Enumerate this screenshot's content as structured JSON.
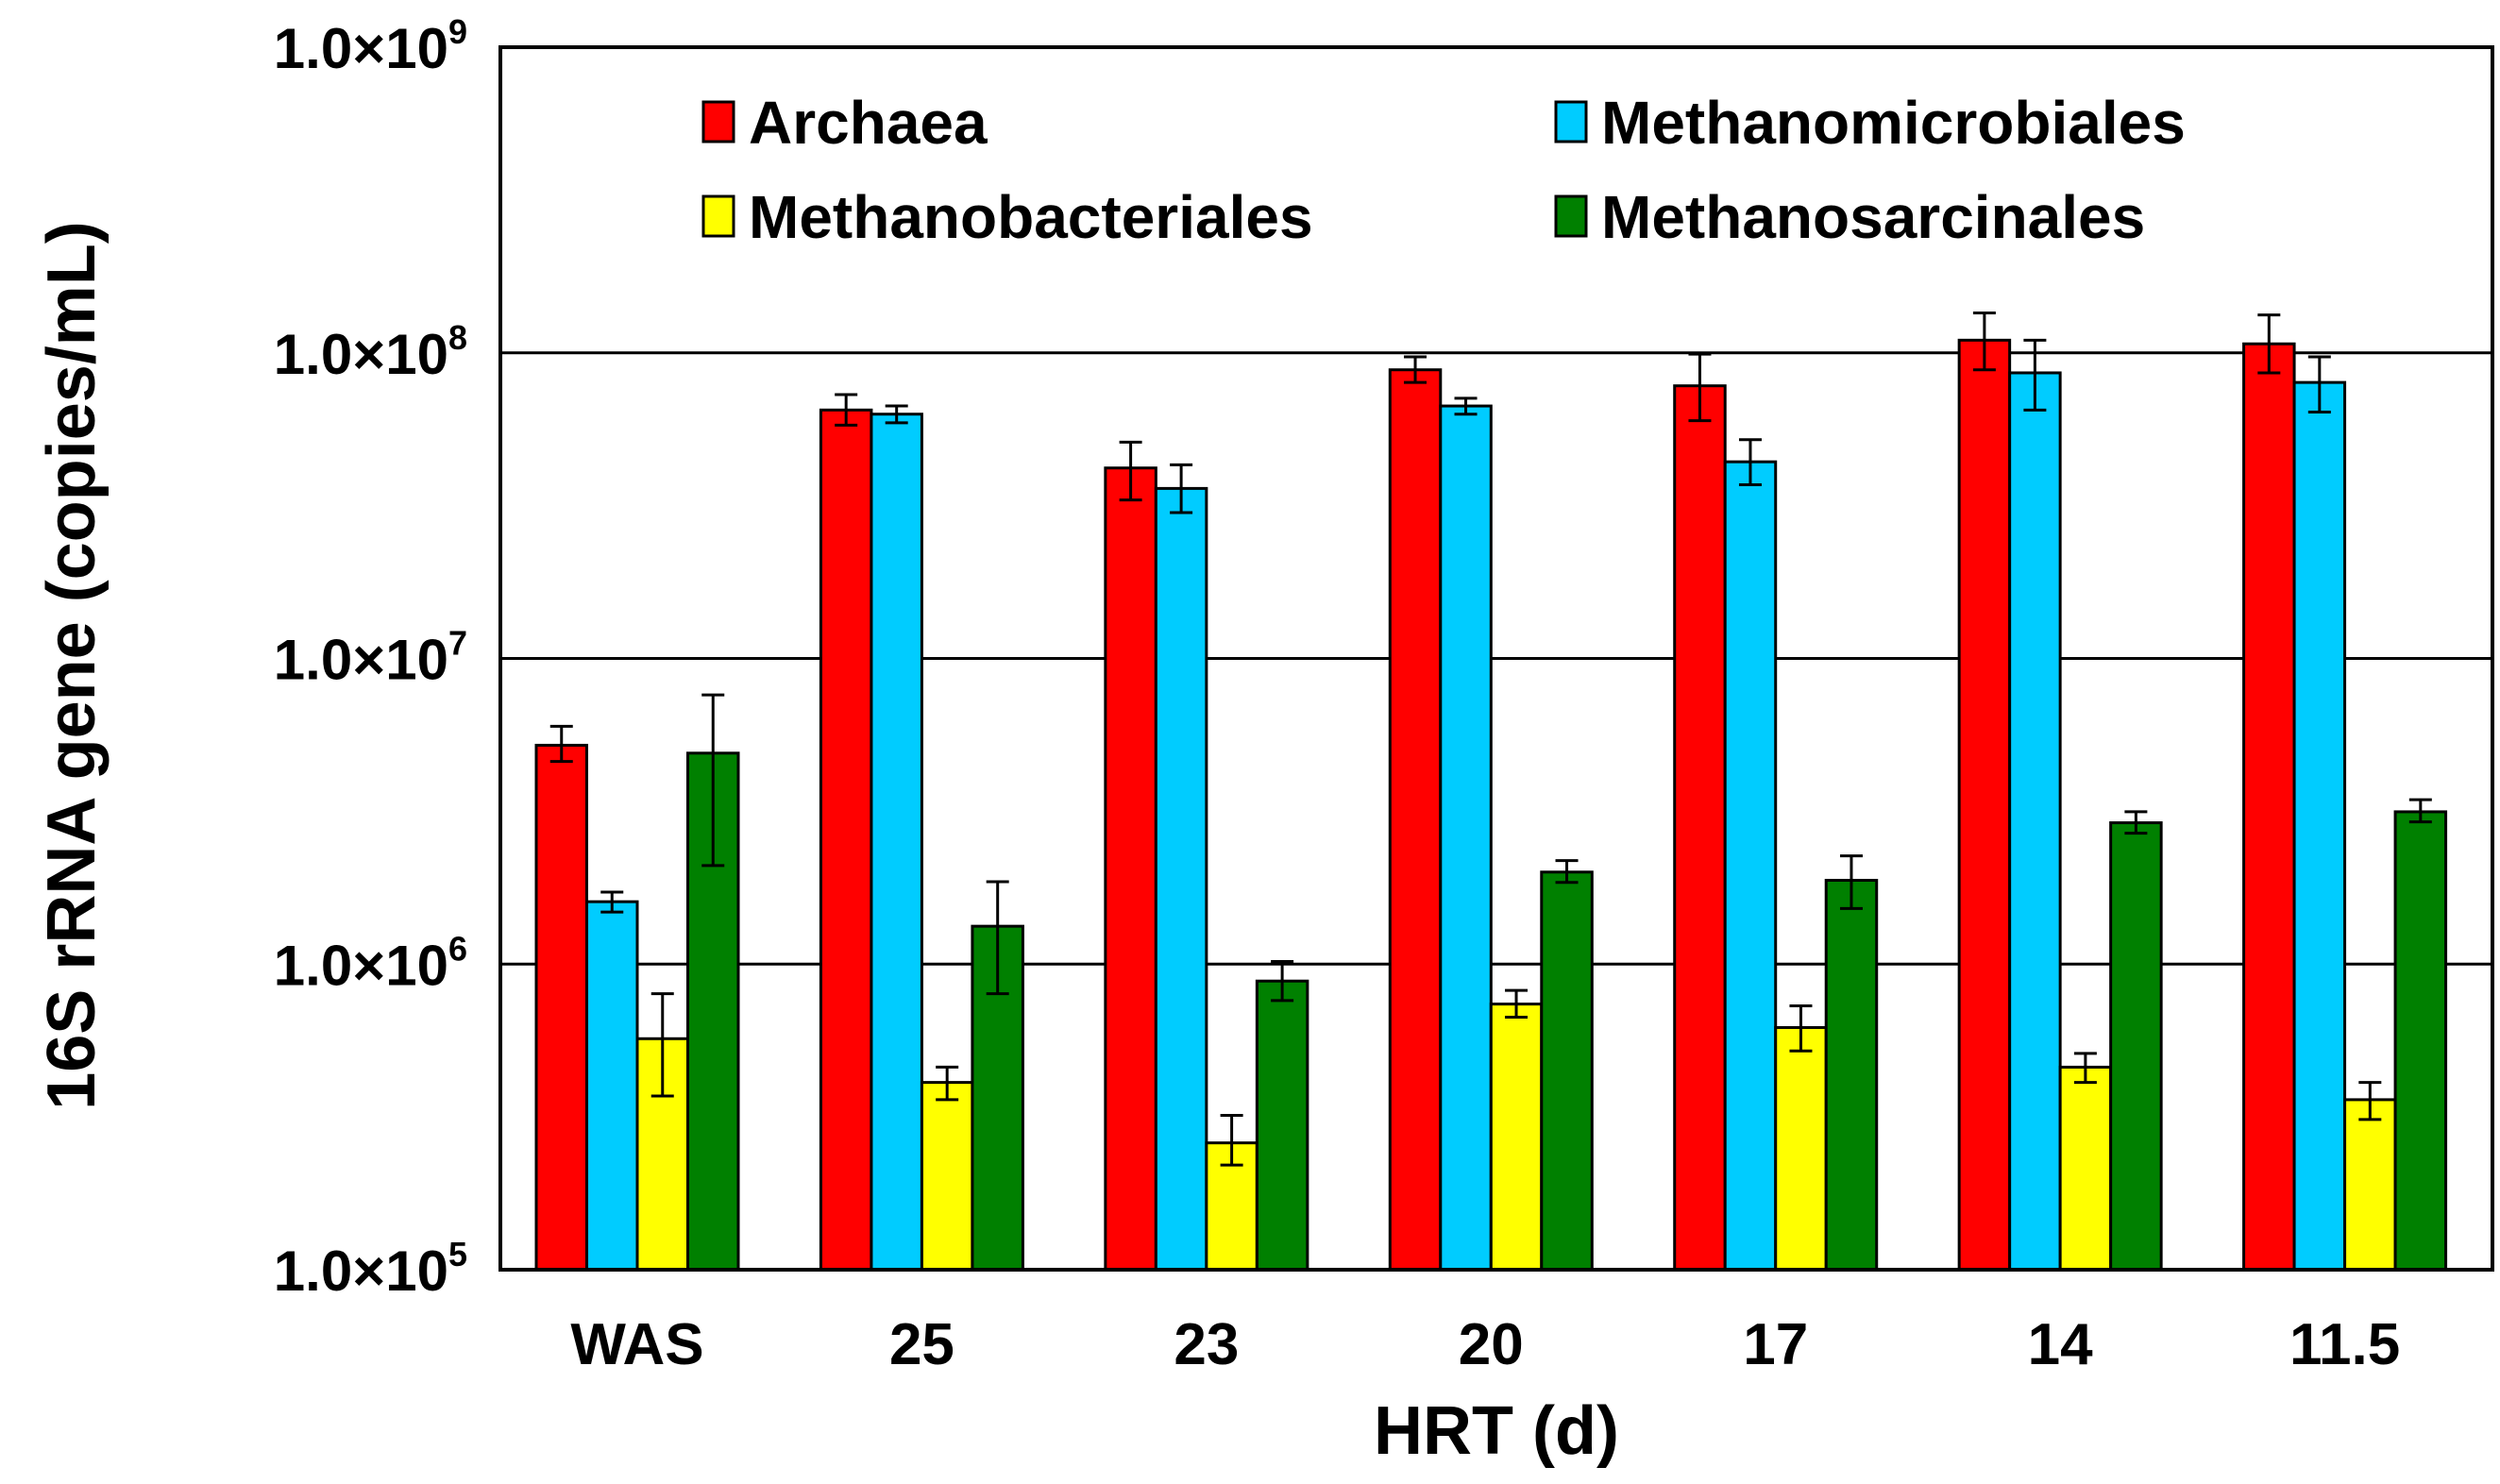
{
  "chart_data": {
    "type": "bar",
    "yscale": "log",
    "ylim": [
      100000,
      1000000000
    ],
    "yticks": [
      {
        "value": 100000,
        "mantissa": "1.0×10",
        "exponent": "5"
      },
      {
        "value": 1000000,
        "mantissa": "1.0×10",
        "exponent": "6"
      },
      {
        "value": 10000000,
        "mantissa": "1.0×10",
        "exponent": "7"
      },
      {
        "value": 100000000,
        "mantissa": "1.0×10",
        "exponent": "8"
      },
      {
        "value": 1000000000,
        "mantissa": "1.0×10",
        "exponent": "9"
      }
    ],
    "grid": true,
    "legend_position": "top",
    "xlabel": "HRT (d)",
    "ylabel": "16S rRNA gene (copies/mL)",
    "categories": [
      "WAS",
      "25",
      "23",
      "20",
      "17",
      "14",
      "11.5"
    ],
    "series": [
      {
        "name": "Archaea",
        "color": "#ff0000",
        "values": [
          5200000,
          65000000,
          42000000,
          88000000,
          78000000,
          110000000,
          107000000
        ],
        "err_low": [
          4600000,
          58000000,
          33000000,
          80000000,
          60000000,
          88000000,
          86000000
        ],
        "err_high": [
          6000000,
          73000000,
          51000000,
          97000000,
          99000000,
          135000000,
          133000000
        ]
      },
      {
        "name": "Methanomicrobiales",
        "color": "#00ccff",
        "values": [
          1600000,
          63000000,
          36000000,
          67000000,
          44000000,
          86000000,
          80000000
        ],
        "err_low": [
          1480000,
          59000000,
          30000000,
          63000000,
          37000000,
          65000000,
          64000000
        ],
        "err_high": [
          1720000,
          67000000,
          43000000,
          71000000,
          52000000,
          110000000,
          97000000
        ]
      },
      {
        "name": "Methanobacteriales",
        "color": "#ffff00",
        "values": [
          570000,
          410000,
          260000,
          740000,
          620000,
          460000,
          360000
        ],
        "err_low": [
          370000,
          360000,
          220000,
          670000,
          520000,
          410000,
          310000
        ],
        "err_high": [
          800000,
          460000,
          320000,
          820000,
          730000,
          510000,
          410000
        ]
      },
      {
        "name": "Methanosarcinales",
        "color": "#008000",
        "values": [
          4900000,
          1330000,
          880000,
          2000000,
          1880000,
          2900000,
          3150000
        ],
        "err_low": [
          2100000,
          800000,
          760000,
          1850000,
          1520000,
          2680000,
          2920000
        ],
        "err_high": [
          7600000,
          1860000,
          1020000,
          2180000,
          2260000,
          3150000,
          3450000
        ]
      }
    ]
  }
}
